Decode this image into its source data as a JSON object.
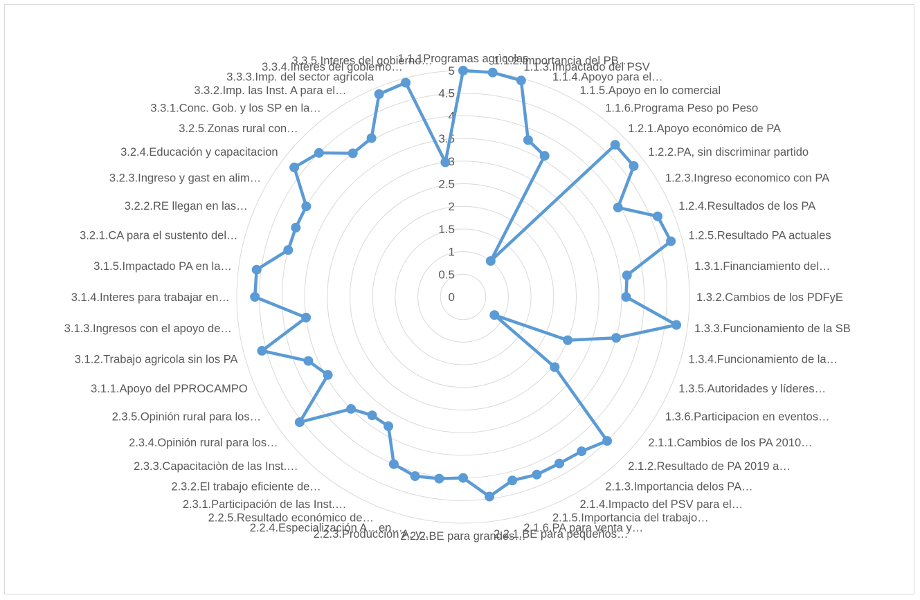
{
  "chart_data": {
    "type": "radar",
    "title": "",
    "rlim": [
      0,
      5
    ],
    "ticks": [
      "0",
      "0.5",
      "1",
      "1.5",
      "2",
      "2.5",
      "3",
      "3.5",
      "4",
      "4.5",
      "5"
    ],
    "grid": true,
    "legend": "none",
    "categories": [
      "1.1.1Programas agrìcolas",
      "1.1.2.Importancia del PB…",
      "1.1.3.Impactado del PSV",
      "1.1.4.Apoyo para el…",
      "1.1.5.Apoyo en lo comercial",
      "1.1.6.Programa Peso po Peso",
      "1.2.1.Apoyo económico de PA",
      "1.2.2.PA, sin discriminar partido",
      "1.2.3.Ingreso economico con PA",
      "1.2.4.Resultados de los PA",
      "1.2.5.Resultado PA actuales",
      "1.3.1.Financiamiento del…",
      "1.3.2.Cambios de los PDFyE",
      "1.3.3.Funcionamiento de la SB",
      "1.3.4.Funcionamiento de la…",
      "1.3.5.Autoridades y líderes…",
      "1.3.6.Participacion en eventos…",
      "2.1.1.Cambios de los PA 2010…",
      "2.1.2.Resultado de PA 2019 a…",
      "2.1.3.Importancia delos PA…",
      "2.1.4.Impacto del PSV para el…",
      "2.1.5.Importancia del trabajo…",
      "2.1.6.PA para venta y…",
      "2.2.1.BE para pequeños…",
      "2.2.2.BE para grandes…",
      "2.2.3.Producción A. y…",
      "2.2.4.Especialización A…en…",
      "2.2.5.Resultado económico de…",
      "2.3.1.Participación de las Inst.…",
      "2.3.2.El trabajo eficiente de…",
      "2.3.3.Capacitaciòn de las Inst.…",
      "2.3.4.Opinión rural para los…",
      "2.3.5.Opinión rural para los…",
      "3.1.1.Apoyo del PPROCAMPO",
      "3.1.2.Trabajo agricola sin los PA",
      "3.1.3.Ingresos con el apoyo de…",
      "3.1.4.Interes para trabajar en…",
      "3.1.5.Impactado PA en la…",
      "3.2.1.CA para el sustento del…",
      "3.2.2.RE llegan en las…",
      "3.2.3.Ingreso y gast en alim…",
      "3.2.4.Educación y capacitacion",
      "3.2.5.Zonas rural con…",
      "3.3.1.Conc. Gob. y los SP en la…",
      "3.3.2.Imp. las Inst. A para el…",
      "3.3.3.Imp. del sector agrìcola",
      "3.3.4.Interes del gobierno…",
      "3.3.5.Interes del gobierno…"
    ],
    "series": [
      {
        "values": [
          5.0,
          5.0,
          4.95,
          3.75,
          3.6,
          1.0,
          4.75,
          4.75,
          3.95,
          4.65,
          4.75,
          3.65,
          3.6,
          4.75,
          3.5,
          2.5,
          0.8,
          2.55,
          4.5,
          4.3,
          4.25,
          4.25,
          4.2,
          4.45,
          4.0,
          4.05,
          4.1,
          4.0,
          3.3,
          3.3,
          3.5,
          4.55,
          3.45,
          3.7,
          4.6,
          3.5,
          4.6,
          4.6,
          4.0,
          4.0,
          4.0,
          4.7,
          4.5,
          4.0,
          4.05,
          4.85,
          4.9,
          3.0
        ],
        "color": "#5b9bd5"
      }
    ]
  }
}
